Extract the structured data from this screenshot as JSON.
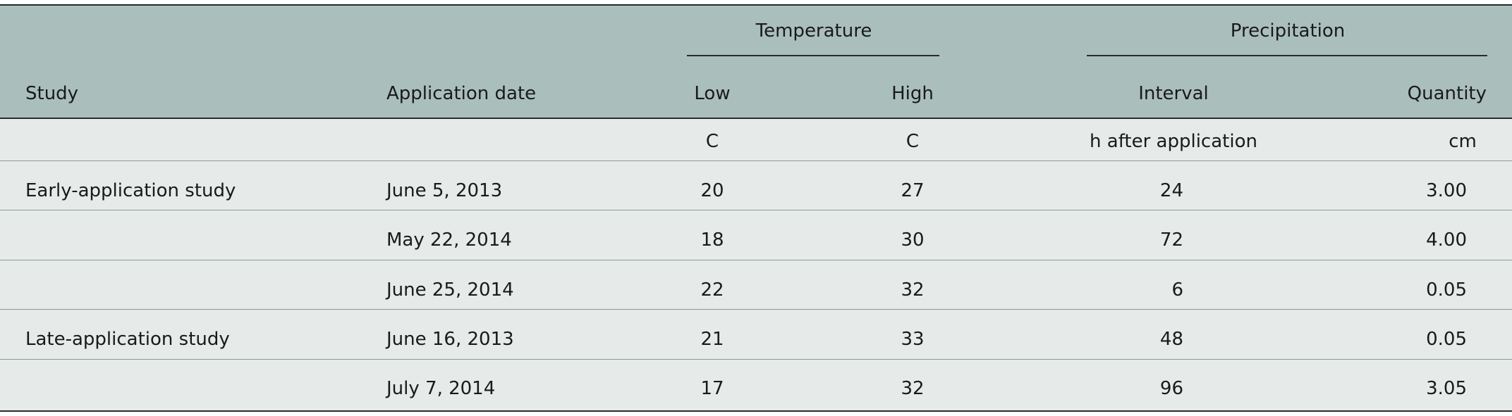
{
  "table": {
    "group_headers": {
      "temperature": "Temperature",
      "precipitation": "Precipitation"
    },
    "columns": {
      "study": "Study",
      "application_date": "Application date",
      "low": "Low",
      "high": "High",
      "interval": "Interval",
      "quantity": "Quantity"
    },
    "units": {
      "low": "C",
      "high": "C",
      "interval": "h after application",
      "quantity": "cm"
    },
    "rows": [
      {
        "study": "Early-application study",
        "date": "June 5, 2013",
        "low": "20",
        "high": "27",
        "interval": "24",
        "quantity": "3.00"
      },
      {
        "study": "",
        "date": "May 22, 2014",
        "low": "18",
        "high": "30",
        "interval": "72",
        "quantity": "4.00"
      },
      {
        "study": "",
        "date": "June 25, 2014",
        "low": "22",
        "high": "32",
        "interval": "6",
        "quantity": "0.05"
      },
      {
        "study": "Late-application study",
        "date": "June 16, 2013",
        "low": "21",
        "high": "33",
        "interval": "48",
        "quantity": "0.05"
      },
      {
        "study": "",
        "date": "July 7, 2014",
        "low": "17",
        "high": "32",
        "interval": "96",
        "quantity": "3.05"
      }
    ]
  }
}
